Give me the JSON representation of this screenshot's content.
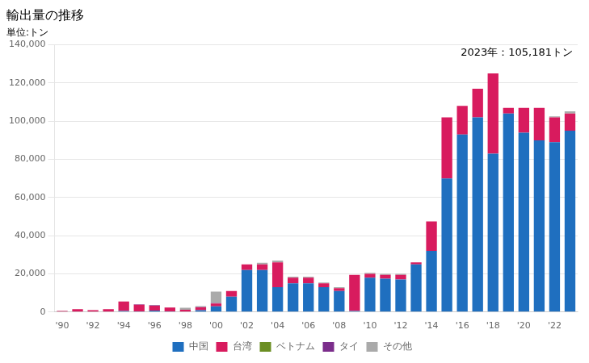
{
  "chart_data": {
    "type": "bar",
    "stacked": true,
    "title": "輸出量の推移",
    "subtitle": "単位:トン",
    "annotation": "2023年：105,181トン",
    "categories": [
      "'90",
      null,
      "'92",
      null,
      "'94",
      null,
      "'96",
      null,
      "'98",
      null,
      "'00",
      null,
      "'02",
      null,
      "'04",
      null,
      "'06",
      null,
      "'08",
      null,
      "'10",
      null,
      "'12",
      null,
      "'14",
      null,
      "'16",
      null,
      "'18",
      null,
      "'20",
      null,
      "'22",
      null
    ],
    "series": [
      {
        "name": "中国",
        "color": "#1F6FBF",
        "values": [
          0,
          0,
          0,
          0,
          500,
          300,
          800,
          300,
          200,
          1000,
          3000,
          8000,
          22000,
          22000,
          13000,
          15000,
          15000,
          13000,
          11000,
          500,
          18000,
          17500,
          17000,
          25000,
          32000,
          70000,
          93000,
          102000,
          83000,
          104000,
          94000,
          90000,
          89000,
          95000
        ]
      },
      {
        "name": "台湾",
        "color": "#D81B5E",
        "values": [
          500,
          1500,
          1000,
          1500,
          5000,
          3500,
          2500,
          2000,
          1000,
          1500,
          1500,
          3000,
          3000,
          3000,
          13000,
          3000,
          3000,
          2000,
          1500,
          19000,
          2000,
          2000,
          2500,
          1000,
          15500,
          32000,
          15000,
          15000,
          42000,
          3000,
          13000,
          17000,
          13000,
          9000
        ]
      },
      {
        "name": "ベトナム",
        "color": "#6B8E23",
        "values": [
          0,
          0,
          0,
          0,
          0,
          0,
          0,
          0,
          0,
          0,
          0,
          0,
          0,
          0,
          0,
          0,
          0,
          0,
          0,
          0,
          0,
          0,
          0,
          0,
          0,
          0,
          0,
          0,
          0,
          0,
          0,
          0,
          0,
          0
        ]
      },
      {
        "name": "タイ",
        "color": "#7B2D8B",
        "values": [
          0,
          0,
          0,
          0,
          0,
          200,
          200,
          0,
          0,
          100,
          200,
          0,
          0,
          0,
          0,
          0,
          0,
          0,
          0,
          0,
          0,
          0,
          0,
          0,
          0,
          0,
          0,
          0,
          0,
          0,
          0,
          0,
          0,
          0
        ]
      },
      {
        "name": "その他",
        "color": "#AAAAAA",
        "values": [
          200,
          0,
          0,
          0,
          0,
          0,
          200,
          100,
          1000,
          500,
          6000,
          0,
          0,
          800,
          1000,
          500,
          500,
          500,
          500,
          0,
          500,
          500,
          500,
          0,
          0,
          0,
          0,
          0,
          0,
          0,
          0,
          0,
          500,
          1181
        ]
      }
    ],
    "ylim": [
      0,
      140000
    ],
    "yticks": [
      0,
      {
        "value": 20000,
        "label": "20,000"
      },
      {
        "value": 40000,
        "label": "40,000"
      },
      {
        "value": 60000,
        "label": "60,000"
      },
      {
        "value": 80000,
        "label": "80,000"
      },
      {
        "value": 100000,
        "label": "100,000"
      },
      {
        "value": 120000,
        "label": "120,000"
      },
      {
        "value": 140000,
        "label": "140,000"
      }
    ],
    "grid": "y",
    "legend": "bottom"
  }
}
